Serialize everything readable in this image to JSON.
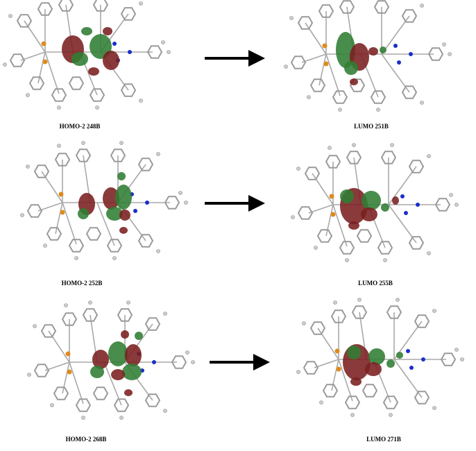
{
  "rows": [
    {
      "left_label": "HOMO-2 248B",
      "right_label": "LUMO 251B"
    },
    {
      "left_label": "HOMO-2 252B",
      "right_label": "LUMO 255B"
    },
    {
      "left_label": "HOMO-2 268B",
      "right_label": "LUMO 271B"
    }
  ]
}
